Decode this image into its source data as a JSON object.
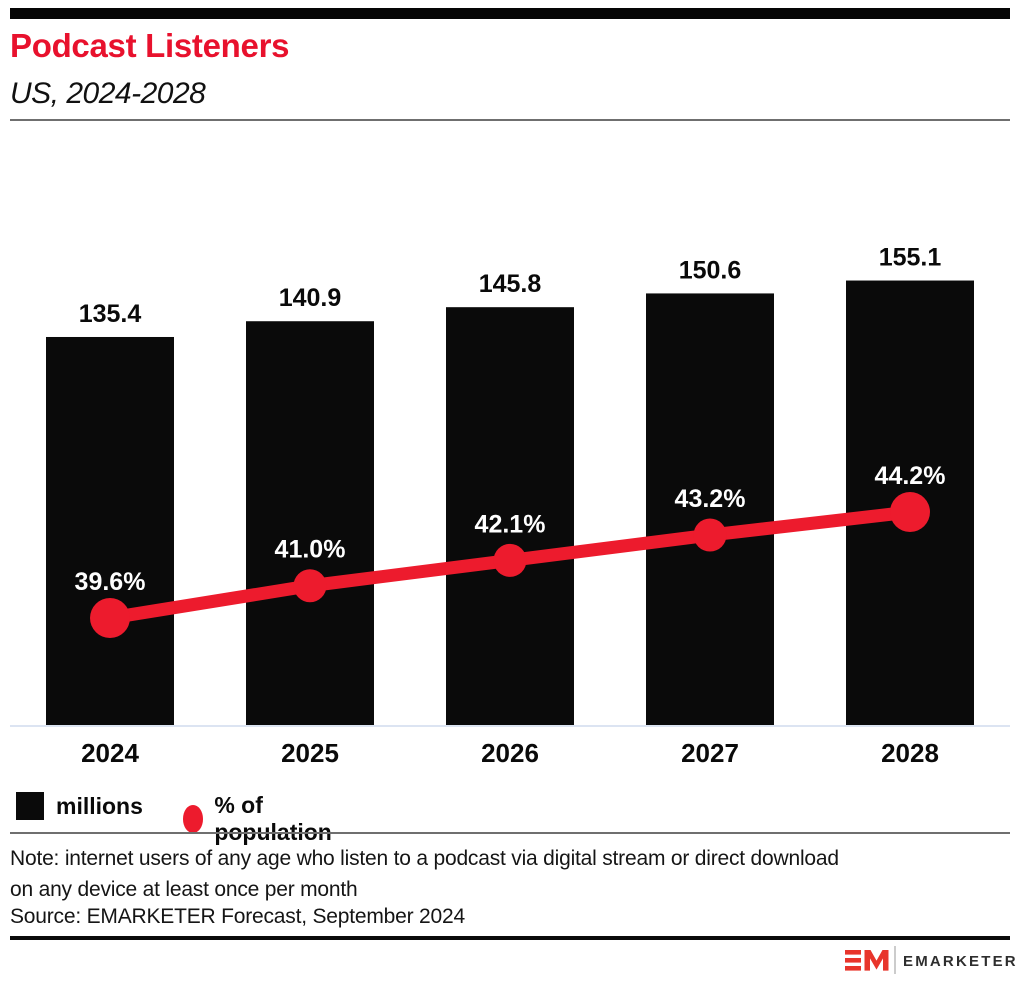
{
  "header": {
    "title": "Podcast Listeners",
    "subtitle": "US, 2024-2028"
  },
  "chart_data": {
    "type": "bar",
    "title": "Podcast Listeners",
    "subtitle": "US, 2024-2028",
    "categories": [
      "2024",
      "2025",
      "2026",
      "2027",
      "2028"
    ],
    "series": [
      {
        "name": "millions",
        "type": "bar",
        "values": [
          135.4,
          140.9,
          145.8,
          150.6,
          155.1
        ],
        "labels": [
          "135.4",
          "140.9",
          "145.8",
          "150.6",
          "155.1"
        ],
        "color": "#0a0a0a"
      },
      {
        "name": "% of population",
        "type": "line",
        "values": [
          39.6,
          41.0,
          42.1,
          43.2,
          44.2
        ],
        "labels": [
          "39.6%",
          "41.0%",
          "42.1%",
          "43.2%",
          "44.2%"
        ],
        "color": "#ed1b2d"
      }
    ],
    "xlabel": "",
    "ylabel": "",
    "ylim_bar": [
      0,
      178
    ],
    "grid": false,
    "legend_position": "bottom",
    "value_labels_shown": true
  },
  "legend": {
    "items": [
      {
        "label": "millions",
        "swatch": "square",
        "color": "#0a0a0a"
      },
      {
        "label": "% of population",
        "swatch": "circle",
        "color": "#ed1b2d"
      }
    ]
  },
  "note": "Note: internet users of any age who listen to a podcast via digital stream or direct download on any device at least once per month",
  "source": "Source: EMARKETER Forecast, September 2024",
  "footer": {
    "brand": "EMARKETER"
  },
  "colors": {
    "brand_red": "#e8112d",
    "line_red": "#ed1b2d",
    "bar_black": "#0a0a0a",
    "axis_line": "#dce4f2"
  }
}
